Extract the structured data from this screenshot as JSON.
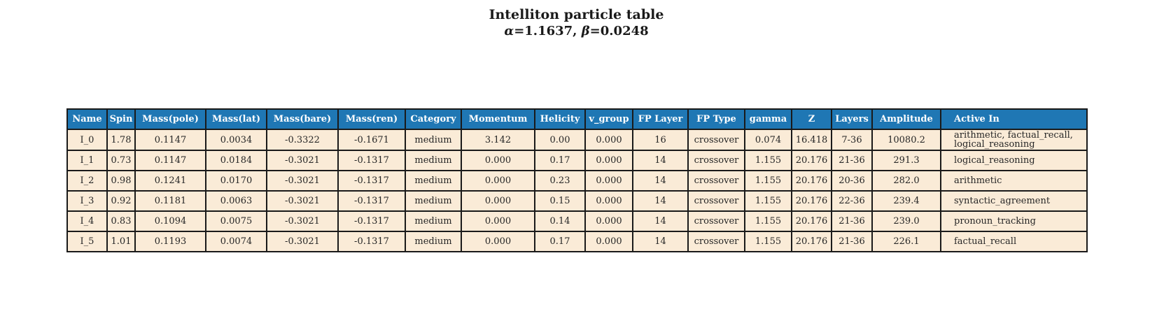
{
  "chart_data": {
    "type": "table",
    "title": "Intelliton particle table",
    "subtitle": {
      "alpha_symbol": "α",
      "alpha_value": "=1.1637, ",
      "beta_symbol": "β",
      "beta_value": "=0.0248"
    },
    "columns": [
      "Name",
      "Spin",
      "Mass(pole)",
      "Mass(lat)",
      "Mass(bare)",
      "Mass(ren)",
      "Category",
      "Momentum",
      "Helicity",
      "v_group",
      "FP Layer",
      "FP Type",
      "gamma",
      "Z",
      "Layers",
      "Amplitude",
      "Active In"
    ],
    "rows": [
      [
        "I_0",
        "1.78",
        "0.1147",
        "0.0034",
        "-0.3322",
        "-0.1671",
        "medium",
        "3.142",
        "0.00",
        "0.000",
        "16",
        "crossover",
        "0.074",
        "16.418",
        "7-36",
        "10080.2",
        "arithmetic, factual_recall, logical_reasoning"
      ],
      [
        "I_1",
        "0.73",
        "0.1147",
        "0.0184",
        "-0.3021",
        "-0.1317",
        "medium",
        "0.000",
        "0.17",
        "0.000",
        "14",
        "crossover",
        "1.155",
        "20.176",
        "21-36",
        "291.3",
        "logical_reasoning"
      ],
      [
        "I_2",
        "0.98",
        "0.1241",
        "0.0170",
        "-0.3021",
        "-0.1317",
        "medium",
        "0.000",
        "0.23",
        "0.000",
        "14",
        "crossover",
        "1.155",
        "20.176",
        "20-36",
        "282.0",
        "arithmetic"
      ],
      [
        "I_3",
        "0.92",
        "0.1181",
        "0.0063",
        "-0.3021",
        "-0.1317",
        "medium",
        "0.000",
        "0.15",
        "0.000",
        "14",
        "crossover",
        "1.155",
        "20.176",
        "22-36",
        "239.4",
        "syntactic_agreement"
      ],
      [
        "I_4",
        "0.83",
        "0.1094",
        "0.0075",
        "-0.3021",
        "-0.1317",
        "medium",
        "0.000",
        "0.14",
        "0.000",
        "14",
        "crossover",
        "1.155",
        "20.176",
        "21-36",
        "239.0",
        "pronoun_tracking"
      ],
      [
        "I_5",
        "1.01",
        "0.1193",
        "0.0074",
        "-0.3021",
        "-0.1317",
        "medium",
        "0.000",
        "0.17",
        "0.000",
        "14",
        "crossover",
        "1.155",
        "20.176",
        "21-36",
        "226.1",
        "factual_recall"
      ]
    ],
    "colors": {
      "header_bg": "#1f77b4",
      "header_text": "#ffffff",
      "row_bg": "#faebd7",
      "border": "#1a1a1a",
      "text": "#262626"
    },
    "layout_hints": {
      "grid": "on",
      "header_position": "top",
      "align": "center, Active In column left-aligned"
    }
  }
}
